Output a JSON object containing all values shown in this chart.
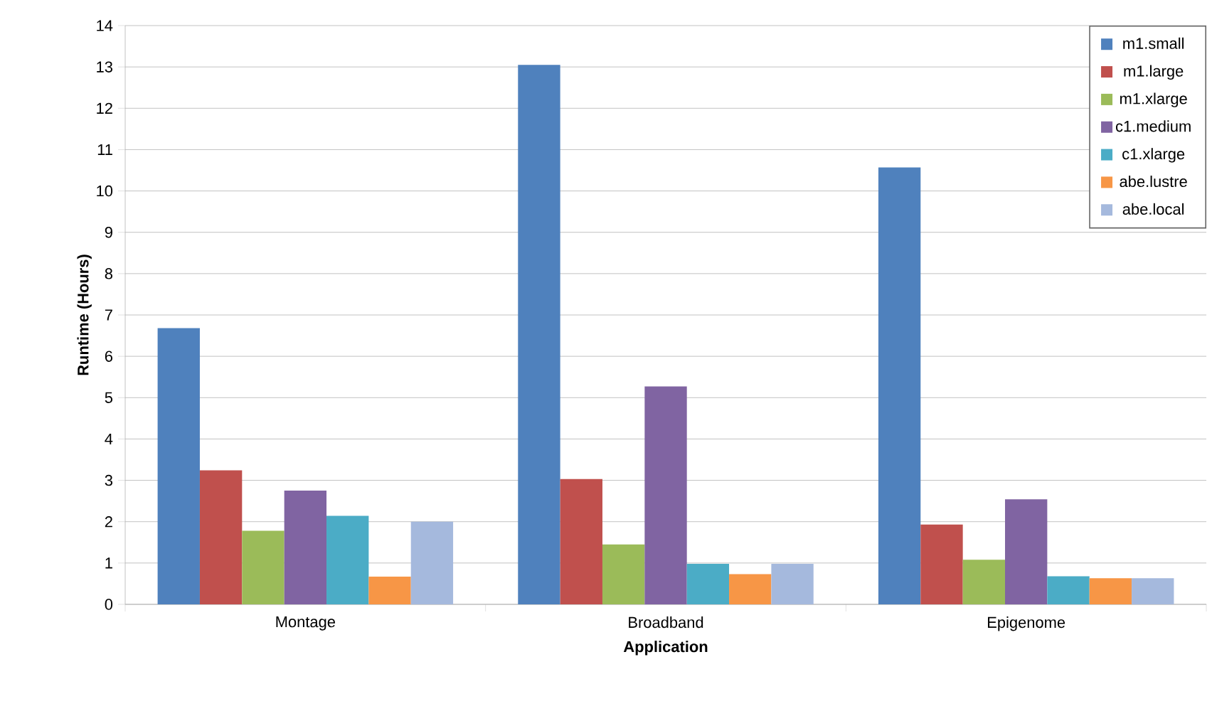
{
  "chart_data": {
    "type": "bar",
    "xlabel": "Application",
    "ylabel": "Runtime (Hours)",
    "categories": [
      "Montage",
      "Broadband",
      "Epigenome"
    ],
    "series": [
      {
        "name": "m1.small",
        "color": "#4f81bd",
        "values": [
          6.68,
          13.05,
          10.57
        ]
      },
      {
        "name": "m1.large",
        "color": "#c0504d",
        "values": [
          3.24,
          3.03,
          1.93
        ]
      },
      {
        "name": "m1.xlarge",
        "color": "#9bbb59",
        "values": [
          1.78,
          1.45,
          1.08
        ]
      },
      {
        "name": "c1.medium",
        "color": "#8064a2",
        "values": [
          2.75,
          5.27,
          2.54
        ]
      },
      {
        "name": "c1.xlarge",
        "color": "#4bacc6",
        "values": [
          2.14,
          0.98,
          0.68
        ]
      },
      {
        "name": "abe.lustre",
        "color": "#f79646",
        "values": [
          0.67,
          0.73,
          0.63
        ]
      },
      {
        "name": "abe.local",
        "color": "#a5b9dd",
        "values": [
          2.0,
          0.98,
          0.63
        ]
      }
    ],
    "ylim": [
      0,
      14
    ],
    "yticks": [
      0,
      1,
      2,
      3,
      4,
      5,
      6,
      7,
      8,
      9,
      10,
      11,
      12,
      13,
      14
    ],
    "grid": "y",
    "legend": "top right"
  }
}
